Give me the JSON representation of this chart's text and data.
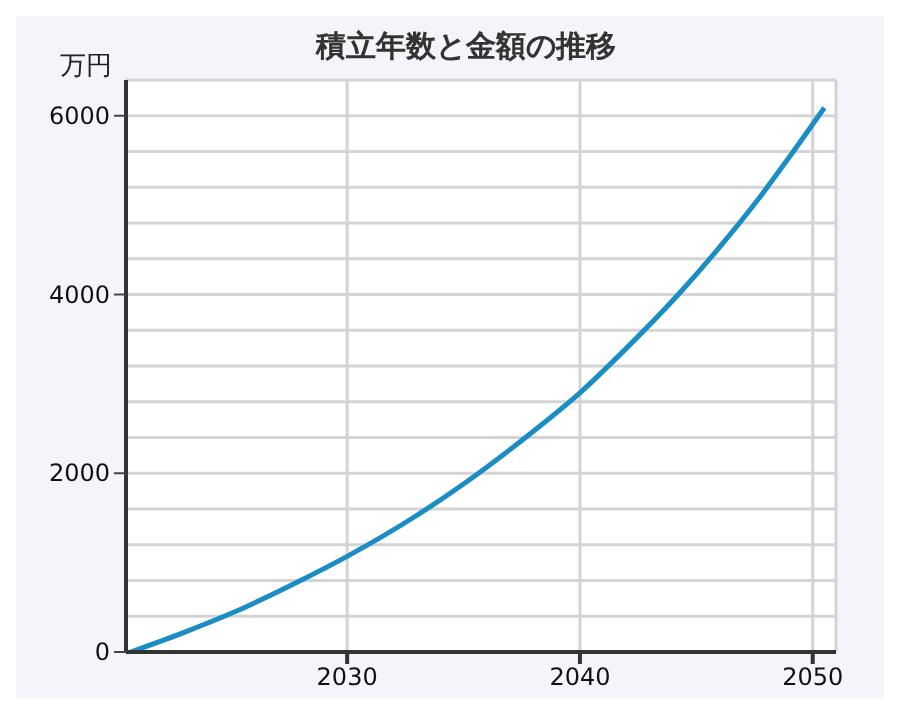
{
  "chart_data": {
    "type": "line",
    "title": "積立年数と金額の推移",
    "ylabel": "万円",
    "x": [
      2020.7,
      2023,
      2025,
      2028,
      2030,
      2033,
      2035,
      2038,
      2040,
      2042,
      2044.4,
      2046,
      2047.7,
      2049,
      2050.5
    ],
    "series": [
      {
        "color": "#1a8ec4",
        "values": [
          0,
          220,
          430,
          800,
          1070,
          1530,
          1880,
          2470,
          2900,
          3400,
          4050,
          4530,
          5080,
          5540,
          6090
        ]
      }
    ],
    "xlim": [
      2020.5,
      2051
    ],
    "xticks": [
      2030,
      2040,
      2050
    ],
    "ylim": [
      0,
      6400
    ],
    "yticks": [
      0,
      {
        "value": 400,
        "label": null
      },
      {
        "value": 800,
        "label": null
      },
      {
        "value": 1200,
        "label": null
      },
      {
        "value": 1600,
        "label": null
      },
      2000,
      {
        "value": 2400,
        "label": null
      },
      {
        "value": 2800,
        "label": null
      },
      {
        "value": 3200,
        "label": null
      },
      {
        "value": 3600,
        "label": null
      },
      4000,
      {
        "value": 4400,
        "label": null
      },
      {
        "value": 4800,
        "label": null
      },
      {
        "value": 5200,
        "label": null
      },
      {
        "value": 5600,
        "label": null
      },
      6000
    ],
    "grid": true,
    "legend": false,
    "marker": "none",
    "line_style": "solid"
  }
}
